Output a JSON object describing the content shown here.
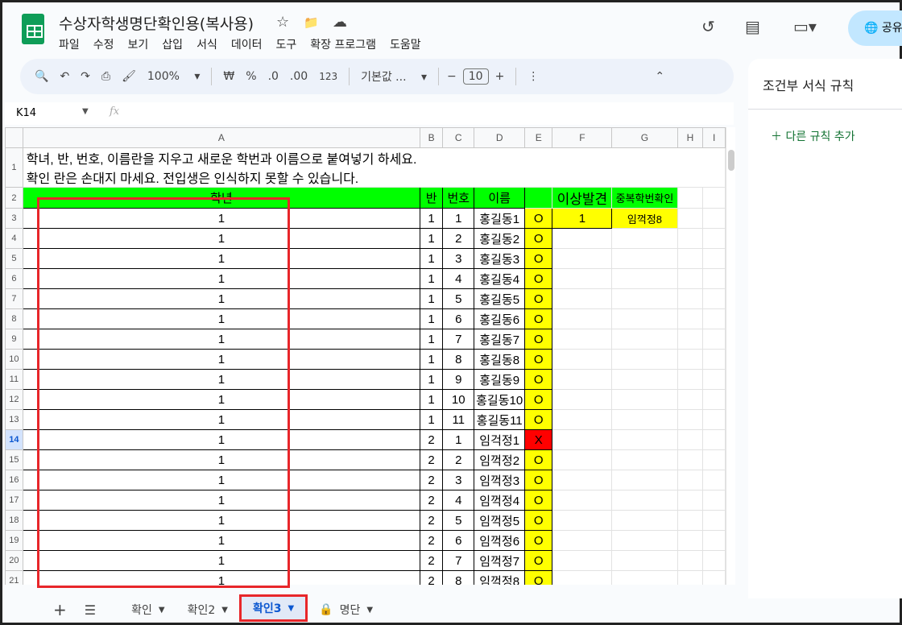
{
  "app": {
    "title": "수상자학생명단확인용(복사용)",
    "menus": [
      "파일",
      "수정",
      "보기",
      "삽입",
      "서식",
      "데이터",
      "도구",
      "확장 프로그램",
      "도움말"
    ],
    "share_label": "공유"
  },
  "toolbar": {
    "zoom": "100%",
    "currency": "₩",
    "percent": "%",
    "dec_decrease": ".0",
    "dec_increase": ".00",
    "number_format": "123",
    "font": "기본값 ...",
    "font_size": "10",
    "minus": "−",
    "plus": "+"
  },
  "formula_bar": {
    "cell_ref": "K14",
    "fx": "fx"
  },
  "columns": [
    "A",
    "B",
    "C",
    "D",
    "E",
    "F",
    "G",
    "H",
    "I"
  ],
  "row1_text": [
    "학녀, 반, 번호, 이름란을 지우고 새로운 학번과 이름으로 붙여넣기 하세요.",
    "확인 란은 손대지 마세요. 전입생은 인식하지 못할 수 있습니다."
  ],
  "headers": {
    "grade": "학년",
    "class": "반",
    "number": "번호",
    "name": "이름",
    "check": "",
    "anomaly": "이상발견",
    "dup": "중복학번확인"
  },
  "f3": "1",
  "g3": "임꺽정8",
  "rows": [
    [
      "1",
      "1",
      "1",
      "홍길동1",
      "O"
    ],
    [
      "1",
      "1",
      "2",
      "홍길동2",
      "O"
    ],
    [
      "1",
      "1",
      "3",
      "홍길동3",
      "O"
    ],
    [
      "1",
      "1",
      "4",
      "홍길동4",
      "O"
    ],
    [
      "1",
      "1",
      "5",
      "홍길동5",
      "O"
    ],
    [
      "1",
      "1",
      "6",
      "홍길동6",
      "O"
    ],
    [
      "1",
      "1",
      "7",
      "홍길동7",
      "O"
    ],
    [
      "1",
      "1",
      "8",
      "홍길동8",
      "O"
    ],
    [
      "1",
      "1",
      "9",
      "홍길동9",
      "O"
    ],
    [
      "1",
      "1",
      "10",
      "홍길동10",
      "O"
    ],
    [
      "1",
      "1",
      "11",
      "홍길동11",
      "O"
    ],
    [
      "1",
      "2",
      "1",
      "임걱정1",
      "X"
    ],
    [
      "1",
      "2",
      "2",
      "임꺽정2",
      "O"
    ],
    [
      "1",
      "2",
      "3",
      "임꺽정3",
      "O"
    ],
    [
      "1",
      "2",
      "4",
      "임꺽정4",
      "O"
    ],
    [
      "1",
      "2",
      "5",
      "임꺽정5",
      "O"
    ],
    [
      "1",
      "2",
      "6",
      "임꺽정6",
      "O"
    ],
    [
      "1",
      "2",
      "7",
      "임꺽정7",
      "O"
    ],
    [
      "1",
      "2",
      "8",
      "임꺽정8",
      "O"
    ]
  ],
  "selected_row": 14,
  "side_panel": {
    "title": "조건부 서식 규칙",
    "add_rule": "다른 규칙 추가"
  },
  "sheets": {
    "add": "+",
    "list": "☰",
    "tabs": [
      "확인",
      "확인2",
      "확인3",
      "명단"
    ],
    "active": "확인3",
    "locked": "명단"
  },
  "colors": {
    "green": "#00ff00",
    "yellow": "#ffff00",
    "red": "#ff0000",
    "highlight_box": "#e8262a"
  }
}
